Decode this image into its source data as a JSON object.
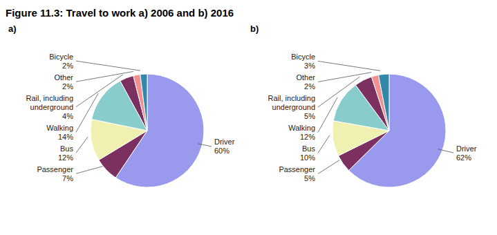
{
  "title": "Figure 11.3: Travel to work a) 2006 and b) 2016",
  "chart_data": [
    {
      "type": "pie",
      "title": "a)",
      "categories": [
        "Driver",
        "Passenger",
        "Bus",
        "Walking",
        "Rail, including\nunderground",
        "Other",
        "Bicycle"
      ],
      "values": [
        60,
        7,
        12,
        14,
        4,
        2,
        2
      ],
      "value_labels": [
        "60%",
        "7%",
        "12%",
        "14%",
        "4%",
        "2%",
        "2%"
      ],
      "colors": [
        "#9999ee",
        "#7b3060",
        "#f0f0b0",
        "#88cccc",
        "#7b3060",
        "#f09090",
        "#3388aa"
      ],
      "data_labels": true
    },
    {
      "type": "pie",
      "title": "b)",
      "categories": [
        "Driver",
        "Passenger",
        "Bus",
        "Walking",
        "Rail, including\nunderground",
        "Other",
        "Bicycle"
      ],
      "values": [
        62,
        5,
        10,
        12,
        5,
        2,
        3
      ],
      "value_labels": [
        "62%",
        "5%",
        "10%",
        "12%",
        "5%",
        "2%",
        "3%"
      ],
      "colors": [
        "#9999ee",
        "#7b3060",
        "#f0f0b0",
        "#88cccc",
        "#7b3060",
        "#f09090",
        "#3388aa"
      ],
      "data_labels": true
    }
  ]
}
